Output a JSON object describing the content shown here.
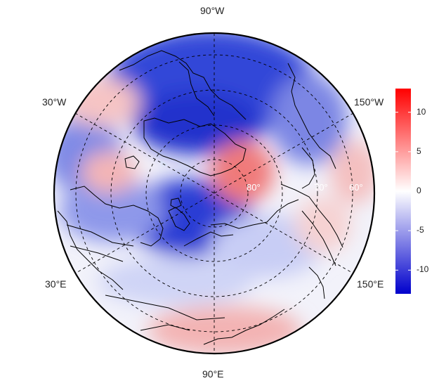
{
  "map": {
    "projection": "north-polar-stereographic",
    "longitude_labels": {
      "top": "90°W",
      "upper_left": "30°W",
      "upper_right": "150°W",
      "lower_left": "30°E",
      "lower_right": "150°E",
      "bottom": "90°E"
    },
    "latitude_labels": [
      "80°",
      "70°",
      "60°"
    ]
  },
  "colorbar": {
    "ticks": [
      "10",
      "5",
      "0",
      "-5",
      "-10"
    ],
    "tick_values": [
      10,
      5,
      0,
      -5,
      -10
    ],
    "range": [
      -13,
      13
    ],
    "colors": {
      "high": "#ff0000",
      "mid": "#ffffff",
      "low": "#0000cc"
    }
  },
  "field_colors": {
    "strong_negative": "#2f3fd6",
    "negative": "#7f8ae6",
    "weak_negative": "#c9cff5",
    "neutral": "#f4f4fb",
    "weak_positive": "#f7d0d0",
    "positive": "#f18f8f"
  }
}
